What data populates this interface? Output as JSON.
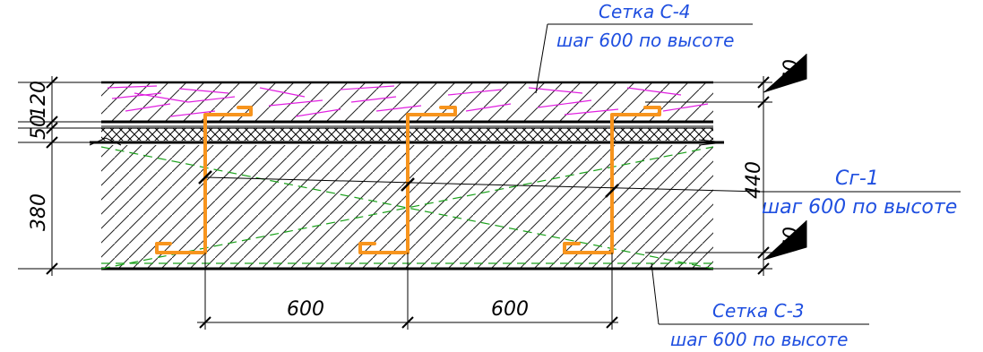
{
  "colors": {
    "outline": "#000000",
    "hatch": "#222222",
    "insulation_hatch": "#e020e0",
    "mesh": "#1aa01a",
    "connector": "#f7941d",
    "leader_text": "#1f4fe0"
  },
  "labels": {
    "mesh_c4": {
      "name": "Сетка С-4",
      "note": "шаг 600 по высоте"
    },
    "connector_cg1": {
      "name": "Сг-1",
      "note": "шаг 600 по высоте"
    },
    "mesh_c3": {
      "name": "Сетка С-3",
      "note": "шаг 600 по высоте"
    }
  },
  "dimensions": {
    "top_offset": "60",
    "total_height": "440",
    "bottom_offset": "60",
    "layer_120": "120",
    "layer_50": "50",
    "layer_380": "380",
    "spacing_left": "600",
    "spacing_right": "600"
  }
}
